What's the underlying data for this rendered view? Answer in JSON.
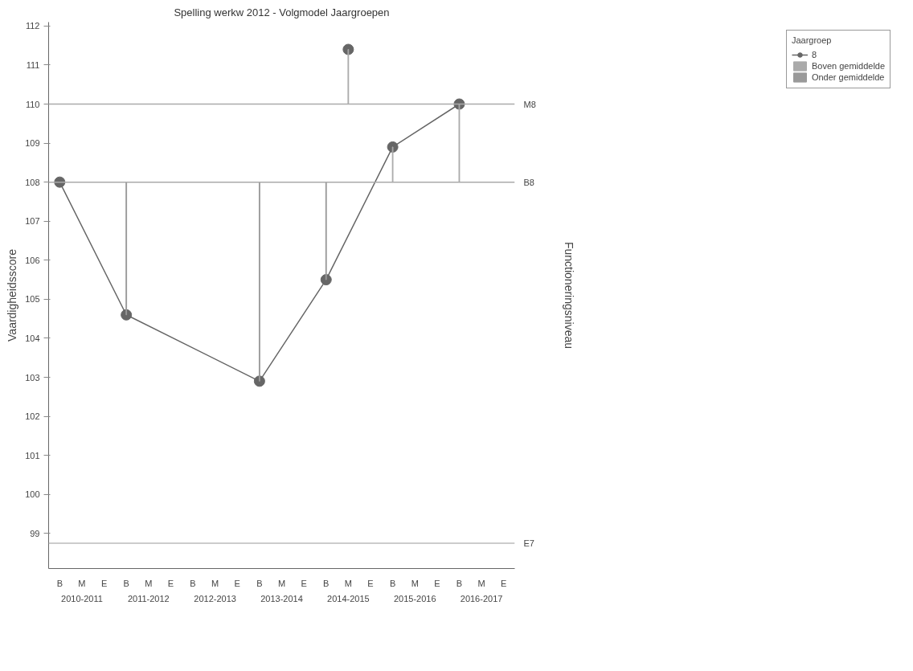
{
  "chart_data": {
    "type": "line",
    "title": "Spelling werkw 2012 - Volgmodel Jaargroepen",
    "ylabel": "Vaardigheidsscore",
    "y2label": "Functioneringsniveau",
    "legend_title": "Jaargroep",
    "legend": "top right",
    "marker": "circle",
    "grid": false,
    "ylim": [
      98.1,
      112.1
    ],
    "yticks": [
      99,
      100,
      101,
      102,
      103,
      104,
      105,
      106,
      107,
      108,
      109,
      110,
      111,
      112
    ],
    "categories": [
      "B",
      "M",
      "E",
      "B",
      "M",
      "E",
      "B",
      "M",
      "E",
      "B",
      "M",
      "E",
      "B",
      "M",
      "E",
      "B",
      "M",
      "E",
      "B",
      "M",
      "E"
    ],
    "annotations": [
      "2010-2011",
      "2011-2012",
      "2012-2013",
      "2013-2014",
      "2014-2015",
      "2015-2016",
      "2016-2017"
    ],
    "ref_lines": [
      {
        "axis": "y",
        "value": 110,
        "label": "M8",
        "color": "#aaaaaa"
      },
      {
        "axis": "y",
        "value": 108,
        "label": "B8",
        "color": "#aaaaaa"
      },
      {
        "axis": "y",
        "value": 98.75,
        "label": "E7",
        "color": "#bbbbbb"
      }
    ],
    "series": [
      {
        "name": "8",
        "color": "#666666",
        "values": [
          108,
          null,
          null,
          104.6,
          null,
          null,
          null,
          null,
          null,
          102.9,
          null,
          null,
          105.5,
          null,
          null,
          108.9,
          null,
          null,
          110.0,
          null,
          null
        ]
      },
      {
        "type": "scatter",
        "color": "#666666",
        "values": [
          null,
          null,
          null,
          null,
          null,
          null,
          null,
          null,
          null,
          null,
          null,
          null,
          null,
          111.4,
          null,
          null,
          null,
          null,
          null,
          null,
          null
        ]
      },
      {
        "name": "Boven gemiddelde",
        "type": "bar",
        "color": "#aaaaaa",
        "base": [
          null,
          null,
          null,
          null,
          null,
          null,
          null,
          null,
          null,
          null,
          null,
          null,
          null,
          110,
          null,
          108,
          null,
          null,
          108,
          null,
          null
        ],
        "values": [
          null,
          null,
          null,
          null,
          null,
          null,
          null,
          null,
          null,
          null,
          null,
          null,
          null,
          1.4,
          null,
          0.9,
          null,
          null,
          2.0,
          null,
          null
        ]
      },
      {
        "name": "Onder gemiddelde",
        "type": "bar",
        "color": "#999999",
        "base": [
          null,
          null,
          null,
          108,
          null,
          null,
          null,
          null,
          null,
          108,
          null,
          null,
          108,
          null,
          null,
          null,
          null,
          null,
          null,
          null,
          null
        ],
        "values": [
          null,
          null,
          null,
          -3.4,
          null,
          null,
          null,
          null,
          null,
          -5.1,
          null,
          null,
          -2.5,
          null,
          null,
          null,
          null,
          null,
          null,
          null,
          null
        ]
      }
    ]
  }
}
